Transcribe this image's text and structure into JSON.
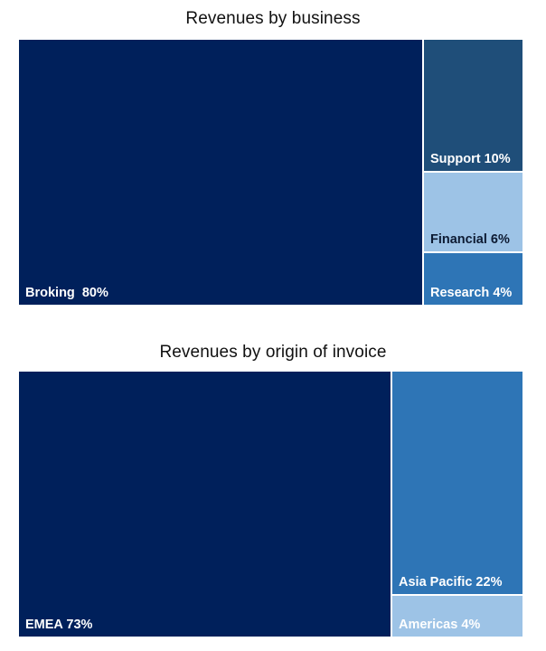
{
  "chart_data": [
    {
      "type": "treemap",
      "title": "Revenues by business",
      "units": "%",
      "items": [
        {
          "name": "Broking",
          "value": 80,
          "label": "Broking  80%",
          "color": "#00205b",
          "text_color": "#ffffff"
        },
        {
          "name": "Support",
          "value": 10,
          "label": "Support 10%",
          "color": "#1f4e79",
          "text_color": "#ffffff"
        },
        {
          "name": "Financial",
          "value": 6,
          "label": "Financial 6%",
          "color": "#9dc3e6",
          "text_color": "#0d1b33"
        },
        {
          "name": "Research",
          "value": 4,
          "label": "Research 4%",
          "color": "#2e75b6",
          "text_color": "#ffffff"
        }
      ]
    },
    {
      "type": "treemap",
      "title": "Revenues by origin of invoice",
      "units": "%",
      "items": [
        {
          "name": "EMEA",
          "value": 73,
          "label": "EMEA 73%",
          "color": "#00205b",
          "text_color": "#ffffff"
        },
        {
          "name": "Asia Pacific",
          "value": 22,
          "label": "Asia Pacific 22%",
          "color": "#2e75b6",
          "text_color": "#ffffff"
        },
        {
          "name": "Americas",
          "value": 4,
          "label": "Americas 4%",
          "color": "#9dc3e6",
          "text_color": "#ffffff"
        }
      ]
    }
  ]
}
